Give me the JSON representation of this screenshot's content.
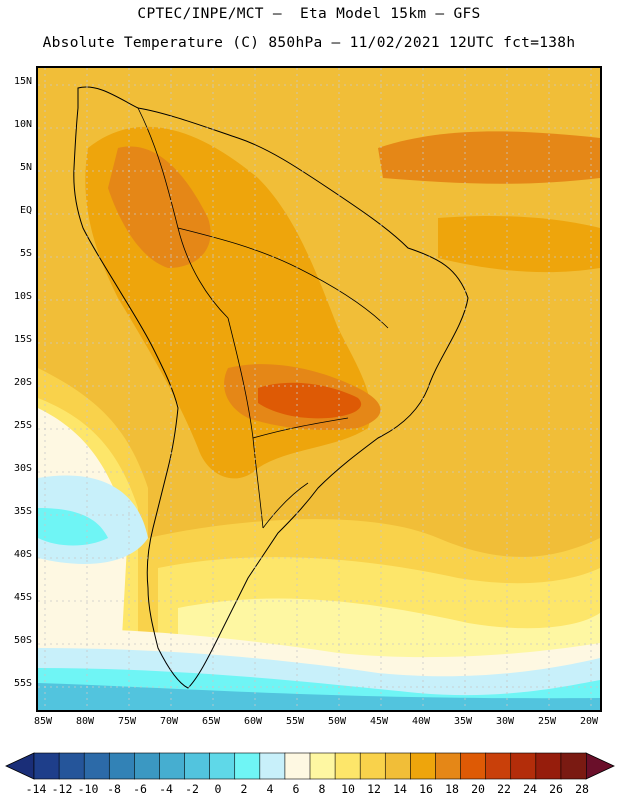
{
  "header": {
    "line1": "CPTEC/INPE/MCT –  Eta Model 15km – GFS",
    "line2": "Absolute Temperature (C) 850hPa – 11/02/2021 12UTC fct=138h"
  },
  "map": {
    "lat_labels": [
      "15N",
      "10N",
      "5N",
      "EQ",
      "5S",
      "10S",
      "15S",
      "20S",
      "25S",
      "30S",
      "35S",
      "40S",
      "45S",
      "50S",
      "55S"
    ],
    "lon_labels": [
      "85W",
      "80W",
      "75W",
      "70W",
      "65W",
      "60W",
      "55W",
      "50W",
      "45W",
      "40W",
      "35W",
      "30W",
      "25W",
      "20W"
    ]
  },
  "colorbar": {
    "colors": [
      "#1e3e8a",
      "#25559a",
      "#2c6aa8",
      "#3282b6",
      "#3b98c2",
      "#46aed0",
      "#52c4de",
      "#5fd8e8",
      "#6ff5f5",
      "#c8f0fa",
      "#fef8e2",
      "#fef7a2",
      "#fde66a",
      "#f9d24b",
      "#f1be38",
      "#eea50c",
      "#e58717",
      "#de5a05",
      "#c9400a",
      "#b32d0a",
      "#961d0c",
      "#7a1a12"
    ],
    "left_arrow_color": "#1a2e78",
    "right_arrow_color": "#6a0f2a",
    "labels": [
      "-14",
      "-12",
      "-10",
      "-8",
      "-6",
      "-4",
      "-2",
      "0",
      "2",
      "4",
      "6",
      "8",
      "10",
      "12",
      "14",
      "16",
      "18",
      "20",
      "22",
      "24",
      "26",
      "28"
    ]
  }
}
